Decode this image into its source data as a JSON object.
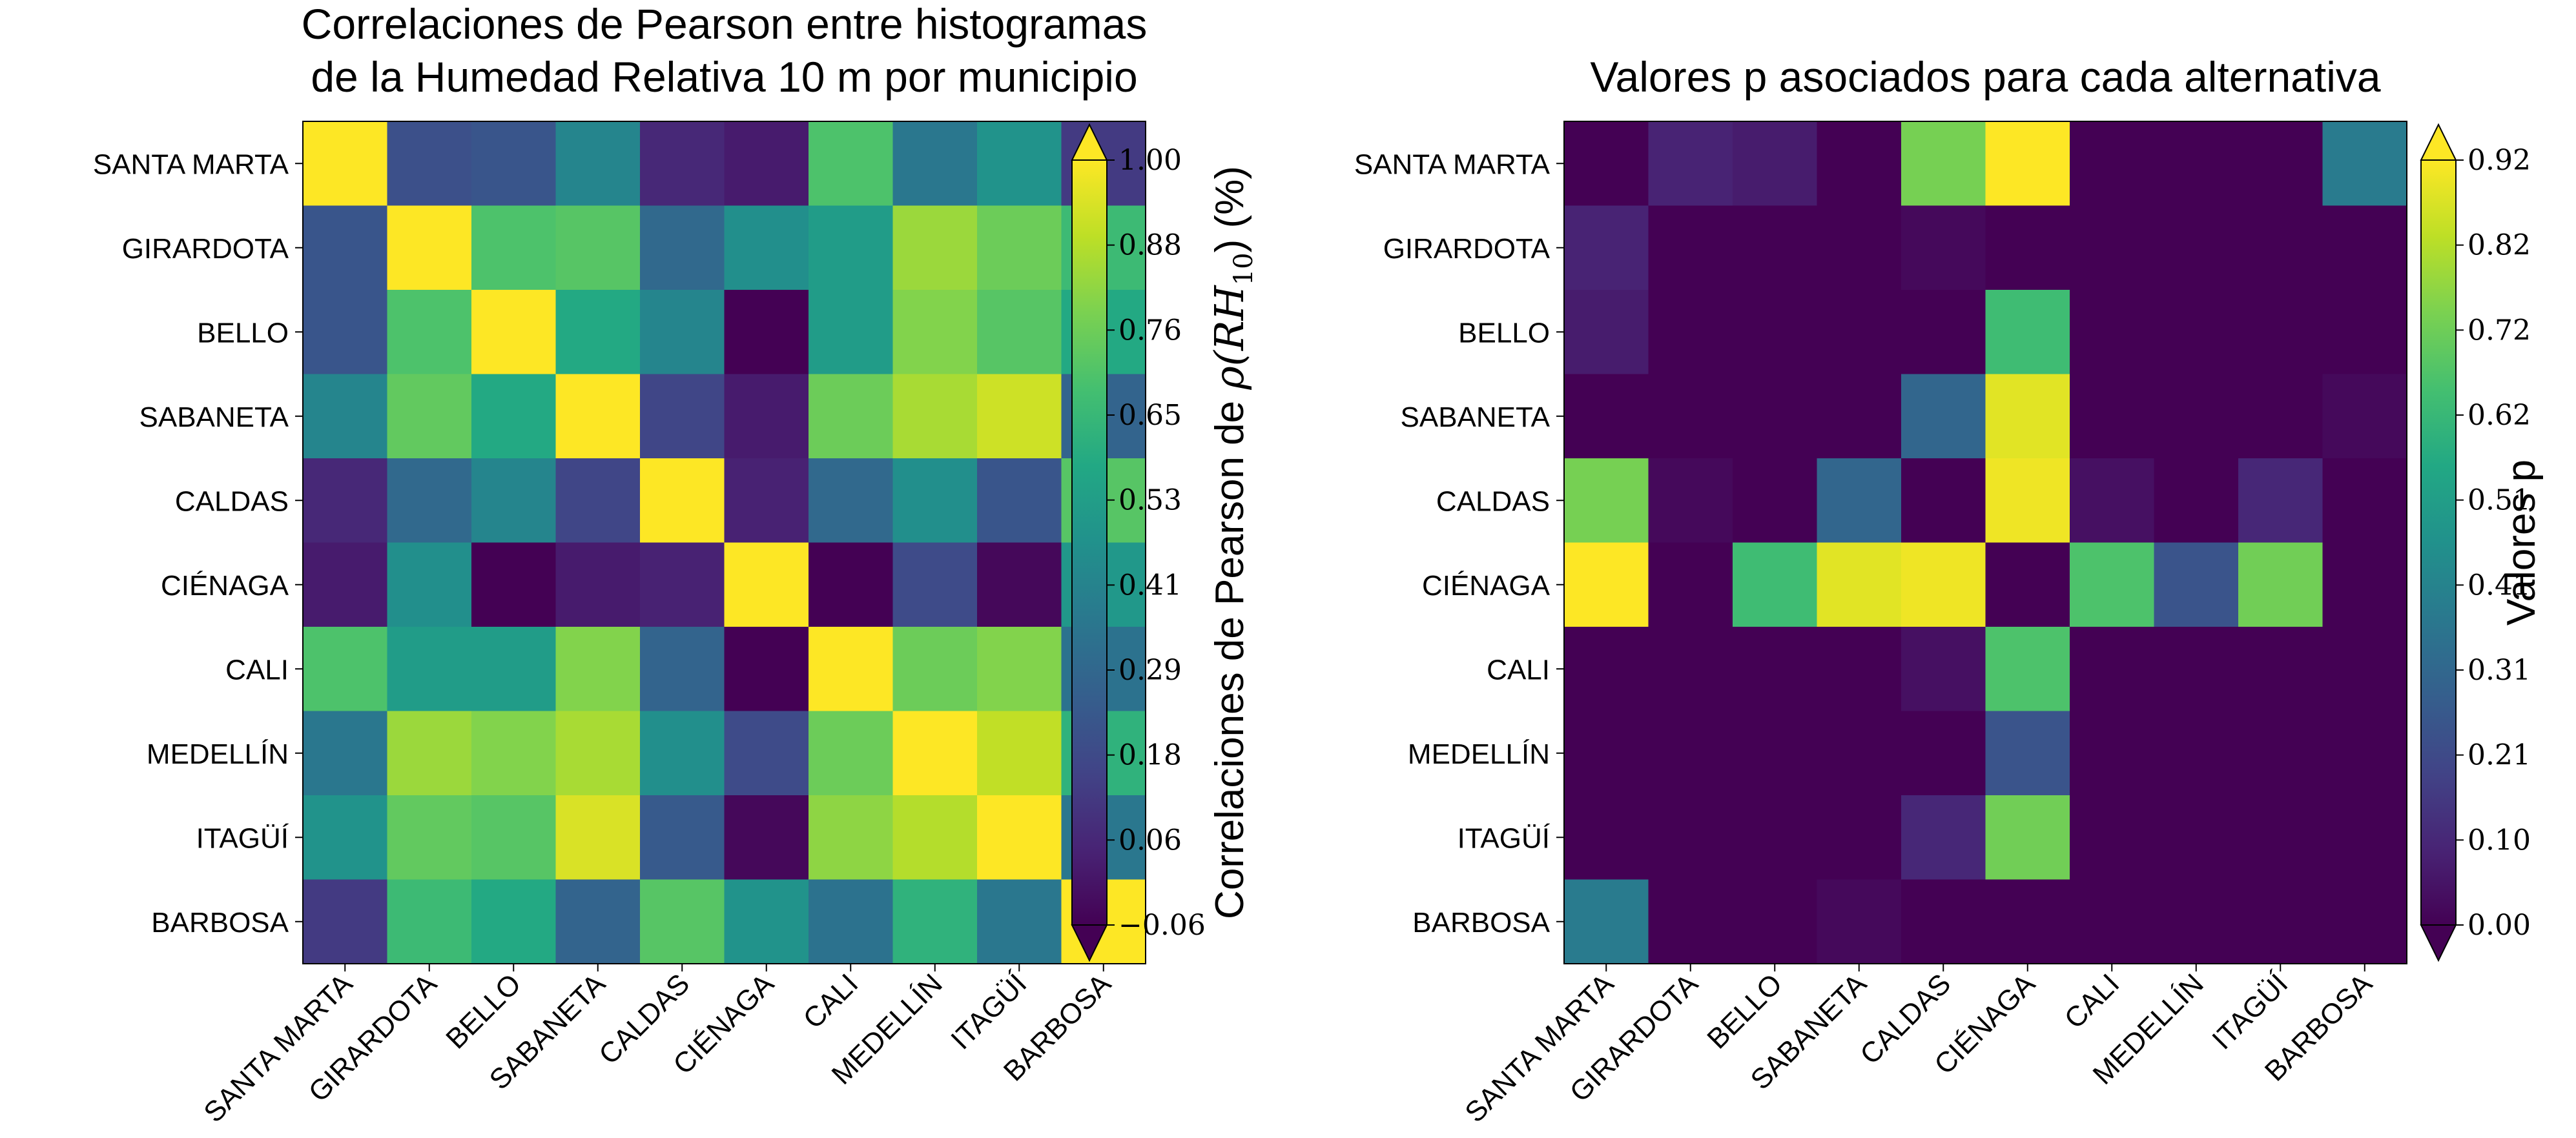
{
  "chart_data": [
    {
      "type": "heatmap",
      "title_lines": [
        "Correlaciones de Pearson entre histogramas",
        "de la Humedad Relativa 10 m por municipio"
      ],
      "row_labels": [
        "SANTA MARTA",
        "GIRARDOTA",
        "BELLO",
        "SABANETA",
        "CALDAS",
        "CIÉNAGA",
        "CALI",
        "MEDELLÍN",
        "ITAGÜÍ",
        "BARBOSA"
      ],
      "col_labels": [
        "SANTA MARTA",
        "GIRARDOTA",
        "BELLO",
        "SABANETA",
        "CALDAS",
        "CIÉNAGA",
        "CALI",
        "MEDELLÍN",
        "ITAGÜÍ",
        "BARBOSA"
      ],
      "values": [
        [
          1.0,
          0.2,
          0.22,
          0.42,
          0.06,
          0.02,
          0.7,
          0.36,
          0.48,
          0.12
        ],
        [
          0.22,
          1.0,
          0.7,
          0.72,
          0.3,
          0.46,
          0.52,
          0.84,
          0.76,
          0.66
        ],
        [
          0.22,
          0.7,
          1.0,
          0.58,
          0.42,
          -0.06,
          0.52,
          0.8,
          0.72,
          0.58
        ],
        [
          0.42,
          0.74,
          0.58,
          1.0,
          0.16,
          0.02,
          0.76,
          0.86,
          0.92,
          0.28
        ],
        [
          0.06,
          0.3,
          0.42,
          0.16,
          1.0,
          0.04,
          0.3,
          0.46,
          0.22,
          0.72
        ],
        [
          0.02,
          0.46,
          -0.06,
          0.02,
          0.04,
          1.0,
          -0.06,
          0.18,
          -0.04,
          0.5
        ],
        [
          0.7,
          0.52,
          0.52,
          0.8,
          0.28,
          -0.06,
          1.0,
          0.76,
          0.8,
          0.34
        ],
        [
          0.36,
          0.84,
          0.8,
          0.86,
          0.46,
          0.18,
          0.76,
          1.0,
          0.9,
          0.62
        ],
        [
          0.48,
          0.74,
          0.72,
          0.94,
          0.24,
          -0.04,
          0.82,
          0.88,
          1.0,
          0.36
        ],
        [
          0.12,
          0.66,
          0.58,
          0.28,
          0.72,
          0.48,
          0.34,
          0.62,
          0.36,
          1.0
        ]
      ],
      "colorbar": {
        "label_text": "Correlaciones de Pearson de ",
        "label_math": "ρ(RH",
        "label_math_sub": "10",
        "label_tail": ") (%)",
        "ticks": [
          "1.00",
          "0.88",
          "0.76",
          "0.65",
          "0.53",
          "0.41",
          "0.29",
          "0.18",
          "0.06",
          "−0.06"
        ],
        "range": [
          -0.06,
          1.0
        ],
        "extend": "both"
      },
      "colormap": "viridis"
    },
    {
      "type": "heatmap",
      "title_lines": [
        "Valores p asociados para cada alternativa"
      ],
      "row_labels": [
        "SANTA MARTA",
        "GIRARDOTA",
        "BELLO",
        "SABANETA",
        "CALDAS",
        "CIÉNAGA",
        "CALI",
        "MEDELLÍN",
        "ITAGÜÍ",
        "BARBOSA"
      ],
      "col_labels": [
        "SANTA MARTA",
        "GIRARDOTA",
        "BELLO",
        "SABANETA",
        "CALDAS",
        "CIÉNAGA",
        "CALI",
        "MEDELLÍN",
        "ITAGÜÍ",
        "BARBOSA"
      ],
      "values": [
        [
          0.0,
          0.09,
          0.07,
          0.0,
          0.73,
          0.92,
          0.0,
          0.0,
          0.0,
          0.38
        ],
        [
          0.09,
          0.0,
          0.0,
          0.0,
          0.02,
          0.0,
          0.0,
          0.0,
          0.0,
          0.0
        ],
        [
          0.07,
          0.0,
          0.0,
          0.0,
          0.0,
          0.63,
          0.0,
          0.0,
          0.0,
          0.0
        ],
        [
          0.0,
          0.0,
          0.0,
          0.0,
          0.3,
          0.88,
          0.0,
          0.0,
          0.0,
          0.02
        ],
        [
          0.73,
          0.02,
          0.0,
          0.3,
          0.0,
          0.9,
          0.04,
          0.0,
          0.1,
          0.0
        ],
        [
          0.92,
          0.0,
          0.63,
          0.88,
          0.9,
          0.0,
          0.66,
          0.24,
          0.72,
          0.0
        ],
        [
          0.0,
          0.0,
          0.0,
          0.0,
          0.04,
          0.66,
          0.0,
          0.0,
          0.0,
          0.0
        ],
        [
          0.0,
          0.0,
          0.0,
          0.0,
          0.0,
          0.24,
          0.0,
          0.0,
          0.0,
          0.0
        ],
        [
          0.0,
          0.0,
          0.0,
          0.0,
          0.1,
          0.72,
          0.0,
          0.0,
          0.0,
          0.0
        ],
        [
          0.38,
          0.0,
          0.0,
          0.02,
          0.0,
          0.0,
          0.0,
          0.0,
          0.0,
          0.0
        ]
      ],
      "colorbar": {
        "label_text": "Valores p",
        "ticks": [
          "0.92",
          "0.82",
          "0.72",
          "0.62",
          "0.51",
          "0.41",
          "0.31",
          "0.21",
          "0.10",
          "0.00"
        ],
        "range": [
          0.0,
          0.92
        ],
        "extend": "both"
      },
      "colormap": "viridis"
    }
  ]
}
